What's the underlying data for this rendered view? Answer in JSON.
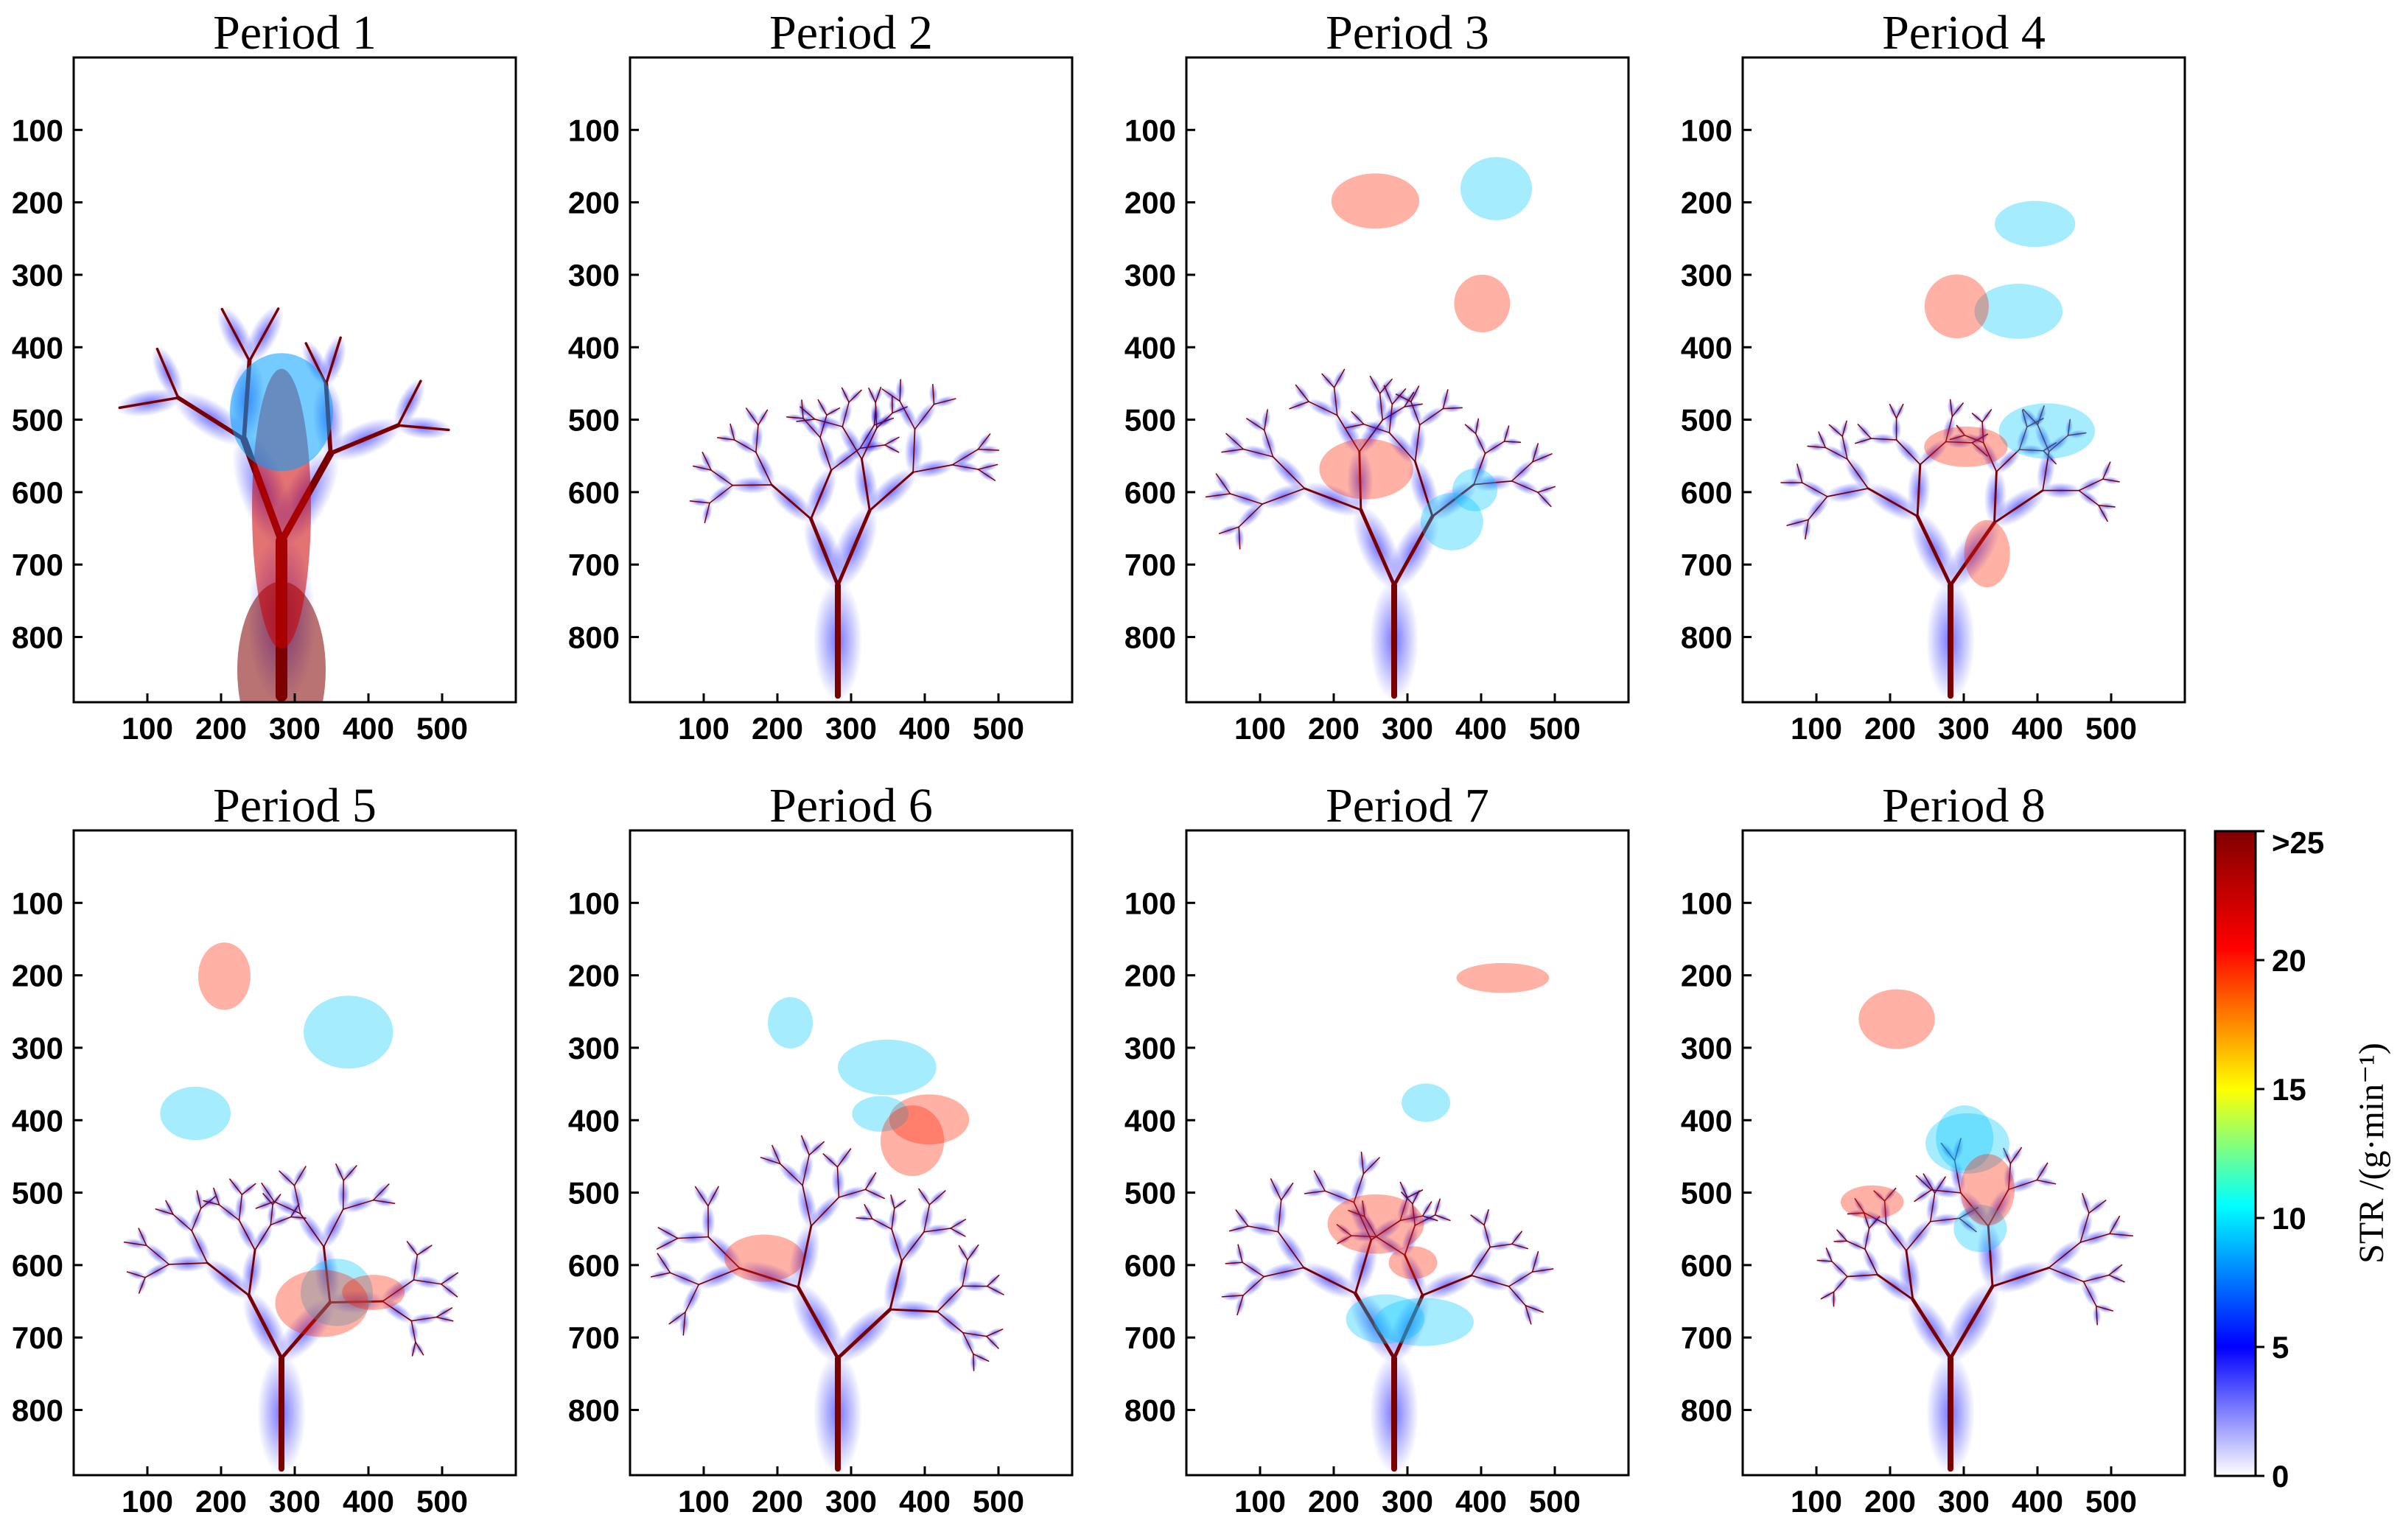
{
  "chart_data": [
    {
      "type": "heatmap",
      "title": "Period 1",
      "x_ticks": [
        100,
        200,
        300,
        400,
        500
      ],
      "y_ticks": [
        100,
        200,
        300,
        400,
        500,
        600,
        700,
        800
      ],
      "xlim": [
        0,
        600
      ],
      "ylim": [
        890,
        0
      ]
    },
    {
      "type": "heatmap",
      "title": "Period 2",
      "x_ticks": [
        100,
        200,
        300,
        400,
        500
      ],
      "y_ticks": [
        100,
        200,
        300,
        400,
        500,
        600,
        700,
        800
      ],
      "xlim": [
        0,
        600
      ],
      "ylim": [
        890,
        0
      ]
    },
    {
      "type": "heatmap",
      "title": "Period 3",
      "x_ticks": [
        100,
        200,
        300,
        400,
        500
      ],
      "y_ticks": [
        100,
        200,
        300,
        400,
        500,
        600,
        700,
        800
      ],
      "xlim": [
        0,
        600
      ],
      "ylim": [
        890,
        0
      ]
    },
    {
      "type": "heatmap",
      "title": "Period 4",
      "x_ticks": [
        100,
        200,
        300,
        400,
        500
      ],
      "y_ticks": [
        100,
        200,
        300,
        400,
        500,
        600,
        700,
        800
      ],
      "xlim": [
        0,
        600
      ],
      "ylim": [
        890,
        0
      ]
    },
    {
      "type": "heatmap",
      "title": "Period 5",
      "x_ticks": [
        100,
        200,
        300,
        400,
        500
      ],
      "y_ticks": [
        100,
        200,
        300,
        400,
        500,
        600,
        700,
        800
      ],
      "xlim": [
        0,
        600
      ],
      "ylim": [
        890,
        0
      ]
    },
    {
      "type": "heatmap",
      "title": "Period 6",
      "x_ticks": [
        100,
        200,
        300,
        400,
        500
      ],
      "y_ticks": [
        100,
        200,
        300,
        400,
        500,
        600,
        700,
        800
      ],
      "xlim": [
        0,
        600
      ],
      "ylim": [
        890,
        0
      ]
    },
    {
      "type": "heatmap",
      "title": "Period 7",
      "x_ticks": [
        100,
        200,
        300,
        400,
        500
      ],
      "y_ticks": [
        100,
        200,
        300,
        400,
        500,
        600,
        700,
        800
      ],
      "xlim": [
        0,
        600
      ],
      "ylim": [
        890,
        0
      ]
    },
    {
      "type": "heatmap",
      "title": "Period 8",
      "x_ticks": [
        100,
        200,
        300,
        400,
        500
      ],
      "y_ticks": [
        100,
        200,
        300,
        400,
        500,
        600,
        700,
        800
      ],
      "xlim": [
        0,
        600
      ],
      "ylim": [
        890,
        0
      ]
    }
  ],
  "colorbar": {
    "title": "STR /(g·min⁻¹)",
    "tick_values": [
      0,
      5,
      10,
      15,
      20,
      25
    ],
    "tick_labels": [
      "0",
      "5",
      "10",
      "15",
      "20",
      ">25"
    ],
    "range": [
      0,
      25
    ],
    "colors": [
      "#ffffff",
      "#0000ff",
      "#00ffff",
      "#ffff00",
      "#ff0000",
      "#800000"
    ]
  }
}
